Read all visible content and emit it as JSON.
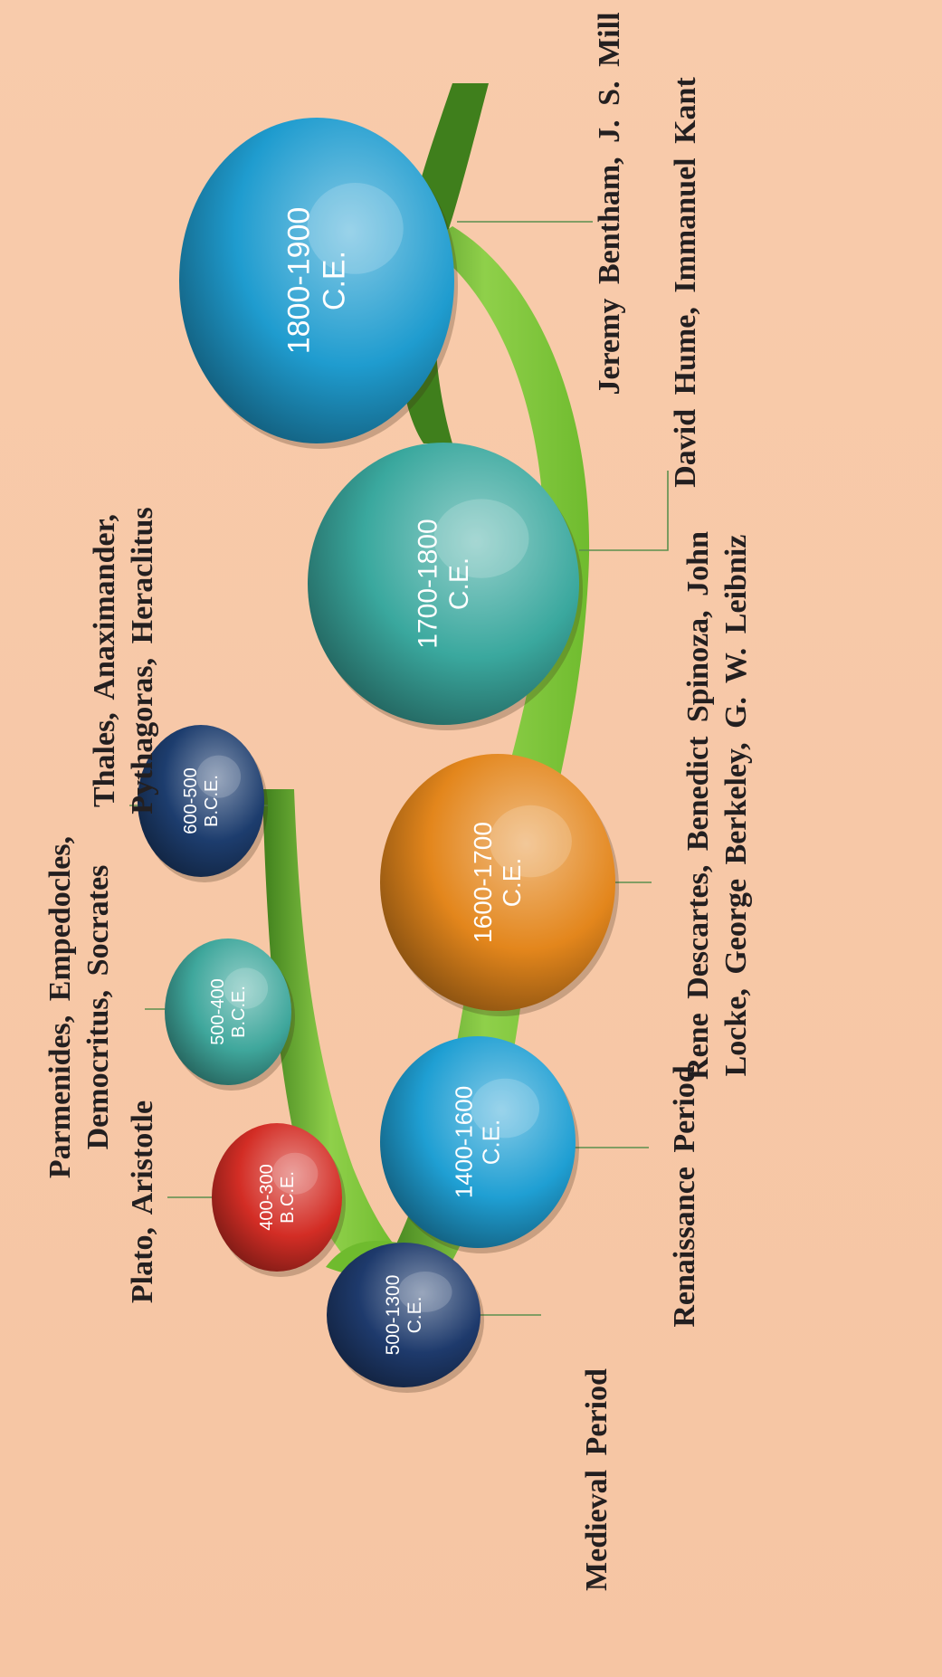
{
  "timeline": {
    "periods": [
      {
        "id": "p600bce",
        "range": "600-500",
        "era": "B.C.E.",
        "philosophers": [
          "Thales, Anaximander,",
          "Pythagoras, Heraclitus"
        ],
        "color": "#1d3d6e"
      },
      {
        "id": "p500bce",
        "range": "500-400",
        "era": "B.C.E.",
        "philosophers": [
          "Parmenides, Empedocles,",
          "Democritus, Socrates"
        ],
        "color": "#3fa79c"
      },
      {
        "id": "p400bce",
        "range": "400-300",
        "era": "B.C.E.",
        "philosophers": [
          "Plato, Aristotle"
        ],
        "color": "#d32d25"
      },
      {
        "id": "p500ce",
        "range": "500-1300",
        "era": "C.E.",
        "philosophers": [
          "Medieval Period"
        ],
        "color": "#1e3a6c"
      },
      {
        "id": "p1400ce",
        "range": "1400-1600",
        "era": "C.E.",
        "philosophers": [
          "Renaissance Period"
        ],
        "color": "#1f9fd3"
      },
      {
        "id": "p1600ce",
        "range": "1600-1700",
        "era": "C.E.",
        "philosophers": [
          "Rene Descartes, Benedict Spinoza, John",
          "Locke, George Berkeley, G. W. Leibniz"
        ],
        "color": "#e3861c"
      },
      {
        "id": "p1700ce",
        "range": "1700-1800",
        "era": "C.E.",
        "philosophers": [
          "David Hume, Immanuel Kant"
        ],
        "color": "#3aa89e"
      },
      {
        "id": "p1800ce",
        "range": "1800-1900",
        "era": "C.E.",
        "philosophers": [
          "Jeremy Bentham, J. S. Mill"
        ],
        "color": "#1f9ccf"
      }
    ]
  },
  "colors": {
    "background": "#f8cbab",
    "ribbon": "#6fbb2e",
    "ribbon_dark": "#3f7f1c",
    "text": "#231f20",
    "connector": "#5b8f4e"
  }
}
